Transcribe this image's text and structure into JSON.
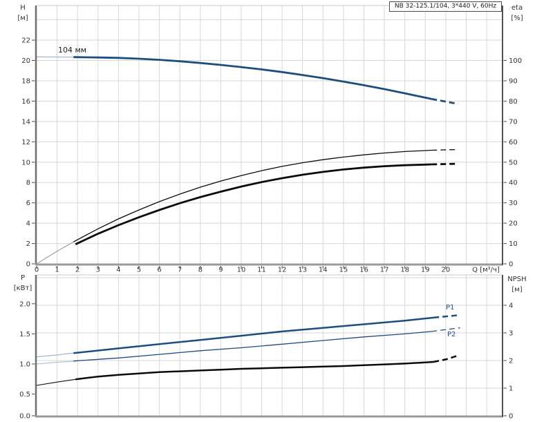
{
  "title_box": "NB 32-125.1/104, 3*440 V, 60Hz",
  "labels": {
    "h": "H",
    "h_unit": "[м]",
    "eta": "eta",
    "eta_unit": "[%]",
    "q": "Q [м³/ч]",
    "p": "P",
    "p_unit": "[кВт]",
    "npsh": "NPSH",
    "npsh_unit": "[м]",
    "impeller": "104 мм",
    "p1": "P1",
    "p2": "P2"
  },
  "colors": {
    "curve_blue": "#1c4d80",
    "lead_blue": "#a0b6cf",
    "curve_black": "#0a0a0a",
    "lead_gray": "#8f8f8f",
    "grid": "#d7d7d7",
    "plot_top_border": "#c8c8c8",
    "axis_left": "#6e6e6e",
    "axis_bottom": "#999999",
    "axis_right": "#3d3d3d",
    "tick": "#4a4a4a",
    "tick_text": "#333333"
  },
  "chart_data": [
    {
      "type": "line",
      "title": "NB 32-125.1/104, 3*440 V, 60Hz",
      "x_axis": {
        "label": "Q [м³/ч]",
        "min": 0,
        "max": 22.74,
        "grid_step": 1,
        "ticks": [
          0,
          1,
          2,
          3,
          4,
          5,
          6,
          7,
          8,
          9,
          10,
          11,
          12,
          13,
          14,
          15,
          16,
          17,
          18,
          19,
          20
        ],
        "tick_labels": [
          "0",
          "1",
          "2",
          "3",
          "4",
          "5",
          "6",
          "7",
          "8",
          "9",
          "10",
          "11",
          "12",
          "13",
          "14",
          "15",
          "16",
          "17",
          "18",
          "19",
          "20"
        ],
        "show_labels": true
      },
      "y_left": {
        "label": "H [м]",
        "min": 0,
        "max": 25.4,
        "ticks": [
          0,
          2,
          4,
          6,
          8,
          10,
          12,
          14,
          16,
          18,
          20,
          22
        ],
        "tick_labels": [
          "0",
          "2",
          "4",
          "6",
          "8",
          "10",
          "12",
          "14",
          "16",
          "18",
          "20",
          "22"
        ],
        "grid_ticks": [
          2,
          4,
          6,
          8,
          10,
          12,
          14,
          16,
          18,
          20,
          22,
          24
        ]
      },
      "y_right": {
        "label": "eta [%]",
        "min": 0,
        "max": 127,
        "ticks": [
          0,
          10,
          20,
          30,
          40,
          50,
          60,
          70,
          80,
          90,
          100
        ],
        "tick_labels": [
          "0",
          "10",
          "20",
          "30",
          "40",
          "50",
          "60",
          "70",
          "80",
          "90",
          "100"
        ],
        "grid_ticks": []
      },
      "series": [
        {
          "name": "head-104mm",
          "axis": "left",
          "color": "#1c4d80",
          "width": 2.8,
          "lead_color": "#a0b6cf",
          "lead_width": 1.2,
          "lead": [
            [
              0,
              20.35
            ],
            [
              1,
              20.34
            ],
            [
              2,
              20.32
            ],
            [
              2.5,
              20.31
            ]
          ],
          "solid": [
            [
              1.8,
              20.33
            ],
            [
              3,
              20.29
            ],
            [
              4,
              20.25
            ],
            [
              5,
              20.17
            ],
            [
              6,
              20.06
            ],
            [
              7,
              19.92
            ],
            [
              8,
              19.75
            ],
            [
              9,
              19.56
            ],
            [
              10,
              19.35
            ],
            [
              11,
              19.12
            ],
            [
              12,
              18.86
            ],
            [
              13,
              18.57
            ],
            [
              14,
              18.26
            ],
            [
              15,
              17.92
            ],
            [
              16,
              17.56
            ],
            [
              17,
              17.18
            ],
            [
              18,
              16.77
            ],
            [
              19,
              16.34
            ],
            [
              19.3,
              16.21
            ]
          ],
          "dashed": [
            [
              19.3,
              16.21
            ],
            [
              20,
              15.95
            ],
            [
              20.6,
              15.73
            ]
          ]
        },
        {
          "name": "eta-thin",
          "axis": "right",
          "color": "#0a0a0a",
          "width": 1.3,
          "lead_color": "#8f8f8f",
          "lead_width": 1.0,
          "lead": [
            [
              0,
              0
            ],
            [
              1,
              6.2
            ],
            [
              2,
              11.9
            ]
          ],
          "solid": [
            [
              1.8,
              10.8
            ],
            [
              3,
              17.2
            ],
            [
              4,
              22.1
            ],
            [
              5,
              26.5
            ],
            [
              6,
              30.6
            ],
            [
              7,
              34.3
            ],
            [
              8,
              37.7
            ],
            [
              9,
              40.7
            ],
            [
              10,
              43.4
            ],
            [
              11,
              45.8
            ],
            [
              12,
              47.9
            ],
            [
              13,
              49.7
            ],
            [
              14,
              51.2
            ],
            [
              15,
              52.5
            ],
            [
              16,
              53.6
            ],
            [
              17,
              54.5
            ],
            [
              18,
              55.2
            ],
            [
              19,
              55.7
            ],
            [
              19.3,
              55.85
            ]
          ],
          "dashed": [
            [
              19.3,
              55.85
            ],
            [
              20.6,
              56.2
            ]
          ]
        },
        {
          "name": "eta-thick",
          "axis": "right",
          "color": "#0a0a0a",
          "width": 2.8,
          "lead_color": null,
          "lead_width": 0,
          "lead": [],
          "solid": [
            [
              1.9,
              9.6
            ],
            [
              3,
              14.8
            ],
            [
              4,
              19.0
            ],
            [
              5,
              22.9
            ],
            [
              6,
              26.5
            ],
            [
              7,
              29.8
            ],
            [
              8,
              32.8
            ],
            [
              9,
              35.5
            ],
            [
              10,
              38.0
            ],
            [
              11,
              40.2
            ],
            [
              12,
              42.1
            ],
            [
              13,
              43.8
            ],
            [
              14,
              45.2
            ],
            [
              15,
              46.4
            ],
            [
              16,
              47.3
            ],
            [
              17,
              48.0
            ],
            [
              18,
              48.5
            ],
            [
              19,
              48.8
            ],
            [
              19.3,
              48.9
            ]
          ],
          "dashed": [
            [
              19.3,
              48.9
            ],
            [
              20.6,
              49.2
            ]
          ]
        }
      ]
    },
    {
      "type": "line",
      "title": "",
      "x_axis": {
        "label": "",
        "min": 0,
        "max": 22.74,
        "grid_step": 1,
        "ticks": [],
        "tick_labels": [],
        "show_labels": false
      },
      "y_left": {
        "label": "P [кВт]",
        "min": 0.14,
        "max": 2.48,
        "ticks": [
          0,
          0.5,
          1.0,
          1.5,
          2.0
        ],
        "tick_labels": [
          "0.0",
          "0.5",
          "1.0",
          "1.5",
          "2.0"
        ],
        "grid_ticks": []
      },
      "y_right": {
        "label": "NPSH [м]",
        "min": 0,
        "max": 5.1,
        "ticks": [
          0,
          1,
          2,
          3,
          4
        ],
        "tick_labels": [
          "0",
          "1",
          "2",
          "3",
          "4"
        ],
        "grid_ticks": [
          1,
          2,
          3,
          4,
          5
        ]
      },
      "series": [
        {
          "name": "P1",
          "axis": "left",
          "color": "#1c4d80",
          "width": 2.5,
          "lead_color": "#a0b6cf",
          "lead_width": 1.2,
          "lead": [
            [
              0,
              1.12
            ],
            [
              1,
              1.15
            ],
            [
              2,
              1.19
            ]
          ],
          "solid": [
            [
              1.8,
              1.18
            ],
            [
              4,
              1.26
            ],
            [
              6,
              1.33
            ],
            [
              8,
              1.4
            ],
            [
              10,
              1.47
            ],
            [
              12,
              1.54
            ],
            [
              14,
              1.6
            ],
            [
              16,
              1.66
            ],
            [
              18,
              1.72
            ],
            [
              19.4,
              1.77
            ]
          ],
          "dashed": [
            [
              19.4,
              1.77
            ],
            [
              20.6,
              1.81
            ]
          ]
        },
        {
          "name": "P2",
          "axis": "left",
          "color": "#1c4d80",
          "width": 1.3,
          "lead_color": "#a0b6cf",
          "lead_width": 1.0,
          "lead": [
            [
              0,
              1.0
            ],
            [
              1,
              1.03
            ],
            [
              2,
              1.05
            ]
          ],
          "solid": [
            [
              1.8,
              1.05
            ],
            [
              4,
              1.1
            ],
            [
              6,
              1.16
            ],
            [
              8,
              1.22
            ],
            [
              10,
              1.27
            ],
            [
              12,
              1.33
            ],
            [
              14,
              1.39
            ],
            [
              16,
              1.45
            ],
            [
              18,
              1.5
            ],
            [
              19.3,
              1.54
            ]
          ],
          "dashed": [
            [
              19.3,
              1.54
            ],
            [
              20.7,
              1.6
            ]
          ]
        },
        {
          "name": "NPSH",
          "axis": "right",
          "color": "#0a0a0a",
          "width": 2.5,
          "lead_color": "#0a0a0a",
          "lead_width": 1.1,
          "lead": [
            [
              0,
              1.1
            ],
            [
              1,
              1.22
            ],
            [
              2,
              1.33
            ]
          ],
          "solid": [
            [
              1.9,
              1.32
            ],
            [
              3,
              1.42
            ],
            [
              4,
              1.48
            ],
            [
              5,
              1.53
            ],
            [
              6,
              1.58
            ],
            [
              7,
              1.61
            ],
            [
              8,
              1.64
            ],
            [
              9,
              1.67
            ],
            [
              10,
              1.7
            ],
            [
              11,
              1.72
            ],
            [
              12,
              1.74
            ],
            [
              13,
              1.76
            ],
            [
              14,
              1.78
            ],
            [
              15,
              1.8
            ],
            [
              16,
              1.83
            ],
            [
              17,
              1.86
            ],
            [
              18,
              1.89
            ],
            [
              19,
              1.93
            ],
            [
              19.4,
              1.95
            ]
          ],
          "dashed": [
            [
              19.4,
              1.95
            ],
            [
              20,
              2.04
            ],
            [
              20.6,
              2.18
            ]
          ]
        }
      ]
    }
  ]
}
